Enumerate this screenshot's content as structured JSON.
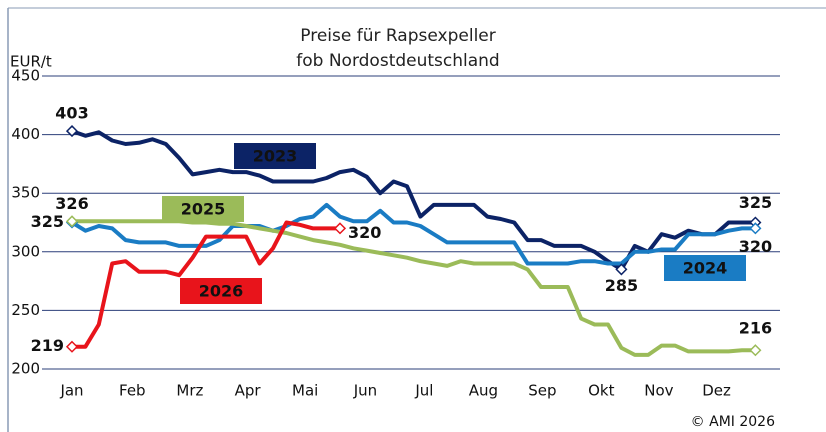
{
  "chart_data": {
    "type": "line",
    "title": "Preise für Rapsexpeller",
    "subtitle": "fob Nordostdeutschland",
    "y_label": "EUR/t",
    "source": "© AMI 2026",
    "x": [
      1,
      2,
      3,
      4,
      5,
      6,
      7,
      8,
      9,
      10,
      11,
      12,
      13,
      14,
      15,
      16,
      17,
      18,
      19,
      20,
      21,
      22,
      23,
      24,
      25,
      26,
      27,
      28,
      29,
      30,
      31,
      32,
      33,
      34,
      35,
      36,
      37,
      38,
      39,
      40,
      41,
      42,
      43,
      44,
      45,
      46,
      47,
      48,
      49,
      50,
      51,
      52
    ],
    "xlim": [
      -1,
      55
    ],
    "xticks": [
      {
        "value": 1,
        "label": "Jan"
      },
      {
        "value": 5.5,
        "label": "Feb"
      },
      {
        "value": 9.8,
        "label": "Mrz"
      },
      {
        "value": 14.1,
        "label": "Apr"
      },
      {
        "value": 18.4,
        "label": "Mai"
      },
      {
        "value": 22.9,
        "label": "Jun"
      },
      {
        "value": 27.3,
        "label": "Jul"
      },
      {
        "value": 31.7,
        "label": "Aug"
      },
      {
        "value": 36.1,
        "label": "Sep"
      },
      {
        "value": 40.5,
        "label": "Okt"
      },
      {
        "value": 44.8,
        "label": "Nov"
      },
      {
        "value": 49.1,
        "label": "Dez"
      }
    ],
    "ylim": [
      200,
      450
    ],
    "yticks": [
      200,
      250,
      300,
      350,
      400,
      450
    ],
    "grid": true,
    "series": [
      {
        "name": "2023",
        "color": "#0c2366",
        "values": [
          403,
          399,
          402,
          395,
          392,
          393,
          396,
          392,
          380,
          366,
          368,
          370,
          368,
          368,
          365,
          360,
          360,
          360,
          360,
          363,
          368,
          370,
          364,
          350,
          360,
          356,
          330,
          340,
          340,
          340,
          340,
          330,
          328,
          325,
          310,
          310,
          305,
          305,
          305,
          300,
          292,
          285,
          305,
          300,
          315,
          312,
          318,
          315,
          315,
          325,
          325,
          325
        ]
      },
      {
        "name": "2024",
        "color": "#1a7cc4",
        "values": [
          325,
          318,
          322,
          320,
          310,
          308,
          308,
          308,
          305,
          305,
          305,
          310,
          322,
          322,
          322,
          318,
          322,
          328,
          330,
          340,
          330,
          326,
          326,
          335,
          325,
          325,
          322,
          315,
          308,
          308,
          308,
          308,
          308,
          308,
          290,
          290,
          290,
          290,
          292,
          292,
          290,
          290,
          300,
          300,
          302,
          302,
          315,
          315,
          315,
          318,
          320,
          320
        ]
      },
      {
        "name": "2025",
        "color": "#9bbb59",
        "values": [
          326,
          326,
          326,
          326,
          326,
          326,
          326,
          326,
          326,
          325,
          325,
          324,
          324,
          322,
          320,
          318,
          316,
          313,
          310,
          308,
          306,
          303,
          301,
          299,
          297,
          295,
          292,
          290,
          288,
          292,
          290,
          290,
          290,
          290,
          285,
          270,
          270,
          270,
          243,
          238,
          238,
          218,
          212,
          212,
          220,
          220,
          215,
          215,
          215,
          215,
          216,
          216
        ]
      },
      {
        "name": "2026",
        "color": "#e8141b",
        "values": [
          219,
          219,
          238,
          290,
          292,
          283,
          283,
          283,
          280,
          295,
          313,
          313,
          313,
          313,
          290,
          303,
          325,
          323,
          320,
          320,
          320,
          null,
          null,
          null,
          null,
          null,
          null,
          null,
          null,
          null,
          null,
          null,
          null,
          null,
          null,
          null,
          null,
          null,
          null,
          null,
          null,
          null,
          null,
          null,
          null,
          null,
          null,
          null,
          null,
          null,
          null,
          null
        ]
      }
    ]
  }
}
